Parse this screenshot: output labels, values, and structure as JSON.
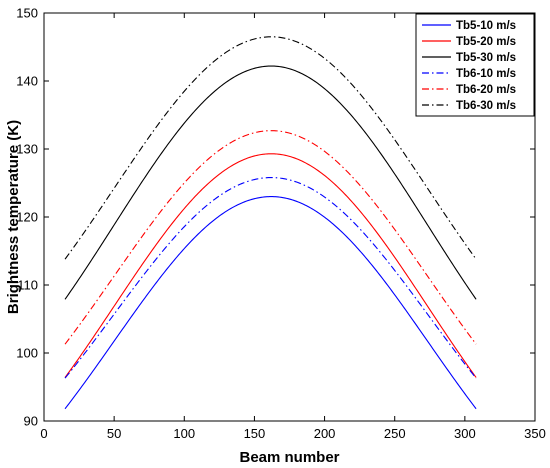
{
  "chart_data": {
    "type": "line",
    "title": "",
    "xlabel": "Beam number",
    "ylabel": "Brightness temperature (K)",
    "xlim": [
      0,
      350
    ],
    "ylim": [
      90,
      150
    ],
    "xticks": [
      0,
      50,
      100,
      150,
      200,
      250,
      300,
      350
    ],
    "yticks": [
      90,
      100,
      110,
      120,
      130,
      140,
      150
    ],
    "grid": false,
    "legend_position": "top-right",
    "x_range": [
      15,
      308
    ],
    "peak_x": 162,
    "series": [
      {
        "name": "Tb5-10 m/s",
        "color": "#0000ff",
        "style": "solid",
        "end_value": 91.8,
        "peak_value": 123.0
      },
      {
        "name": "Tb5-20 m/s",
        "color": "#ff0000",
        "style": "solid",
        "end_value": 96.4,
        "peak_value": 129.3
      },
      {
        "name": "Tb5-30 m/s",
        "color": "#000000",
        "style": "solid",
        "end_value": 107.9,
        "peak_value": 142.2
      },
      {
        "name": "Tb6-10 m/s",
        "color": "#0000ff",
        "style": "dashdot",
        "end_value": 96.3,
        "peak_value": 125.8
      },
      {
        "name": "Tb6-20 m/s",
        "color": "#ff0000",
        "style": "dashdot",
        "end_value": 101.3,
        "peak_value": 132.7
      },
      {
        "name": "Tb6-30 m/s",
        "color": "#000000",
        "style": "dashdot",
        "end_value": 113.8,
        "peak_value": 146.5
      }
    ]
  }
}
